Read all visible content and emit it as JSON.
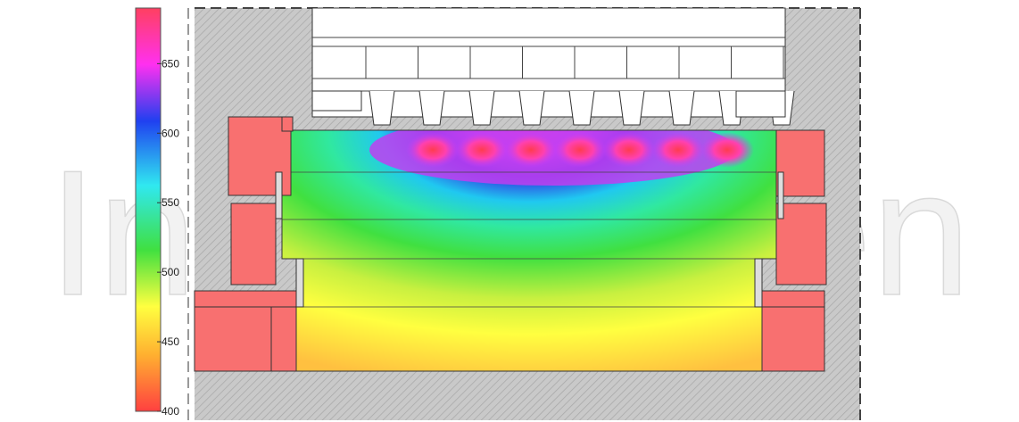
{
  "colorbar": {
    "min": 400,
    "max": 690,
    "ticks": [
      "400",
      "450",
      "500",
      "550",
      "600",
      "650"
    ],
    "tick_values": [
      400,
      450,
      500,
      550,
      600,
      650
    ],
    "stops": [
      "#ff4040",
      "#ffb030",
      "#ffff40",
      "#40e040",
      "#30e8f0",
      "#2040f0",
      "#ff30f0",
      "#ff4060"
    ]
  },
  "watermark": "IntechOpen",
  "colors": {
    "hatch_gray": "#c8c8c8",
    "insulation_red": "#f87070",
    "outline": "#333333"
  },
  "field": {
    "hot_spot_count": 7
  }
}
